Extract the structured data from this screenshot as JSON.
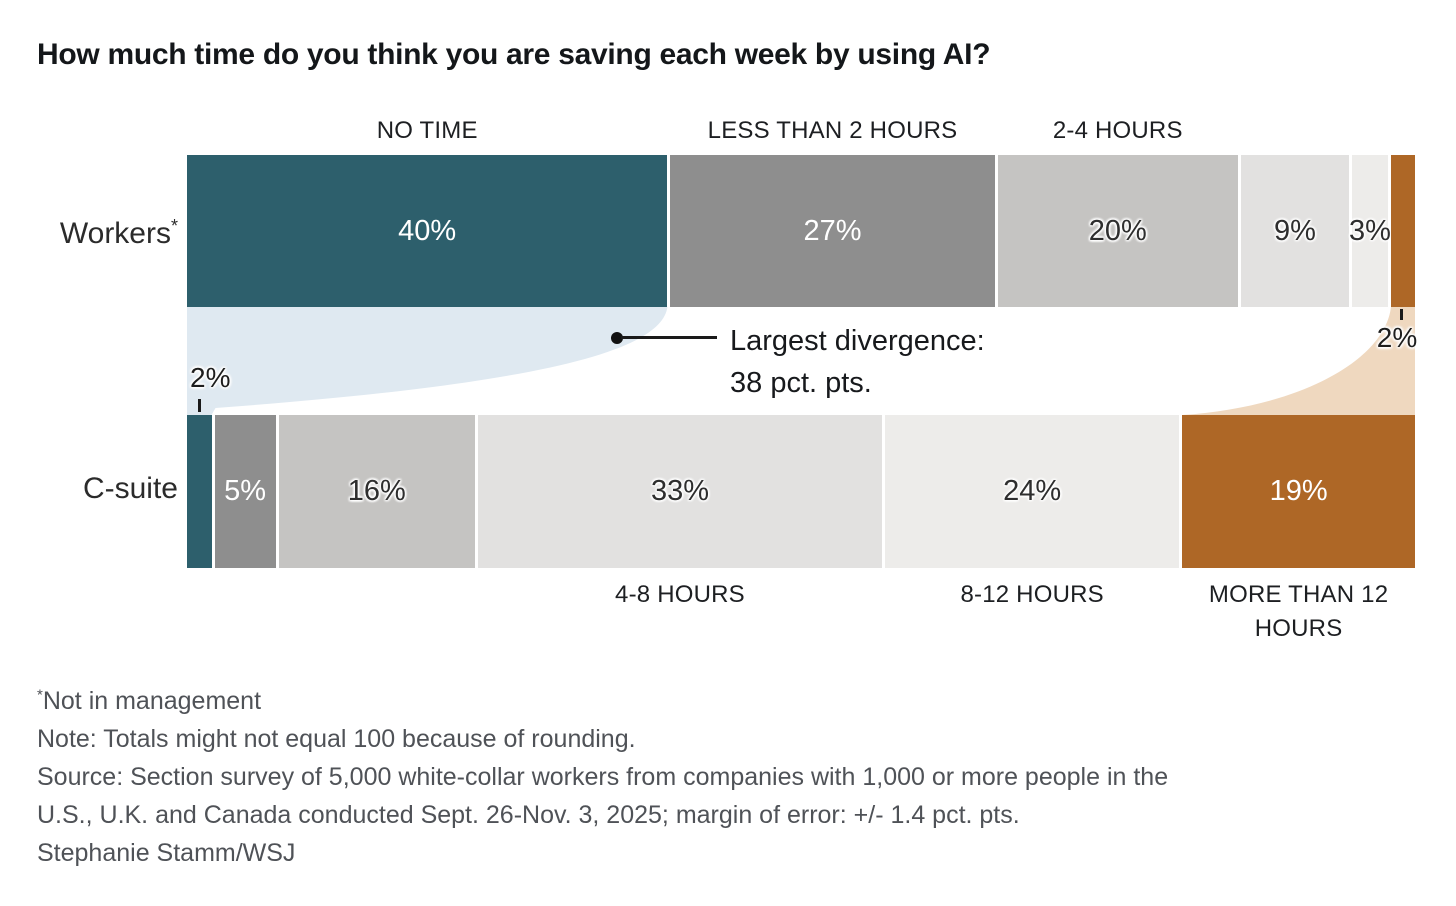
{
  "title": "How much time do you think you are saving each week by using AI?",
  "chart_data": {
    "type": "bar",
    "variant": "horizontal-stacked-comparison",
    "unit": "%",
    "categories": [
      "NO TIME",
      "LESS THAN 2 HOURS",
      "2-4 HOURS",
      "4-8 HOURS",
      "8-12 HOURS",
      "MORE THAN 12 HOURS"
    ],
    "series": [
      {
        "name": "Workers",
        "name_sup": "*",
        "values": [
          40,
          27,
          20,
          9,
          3,
          2
        ]
      },
      {
        "name": "C-suite",
        "name_sup": "",
        "values": [
          2,
          5,
          16,
          33,
          24,
          19
        ]
      }
    ],
    "segment_colors": [
      "#2d5f6c",
      "#8e8e8e",
      "#c5c4c2",
      "#e2e1e0",
      "#edecea",
      "#ae6726"
    ],
    "segment_label_styles": [
      "light",
      "light",
      "dark",
      "dark",
      "dark",
      "light"
    ],
    "flow_colors": {
      "no_time": "#dfe9f1",
      "more_than_12": "#efd8bf"
    },
    "outside_labels": {
      "workers_more_than_12": "2%",
      "csuite_no_time": "2%"
    },
    "annotation": {
      "line1": "Largest divergence:",
      "line2": "38 pct. pts."
    }
  },
  "footnotes": {
    "asterisk_sup": "*",
    "asterisk_text": "Not in management",
    "note": "Note: Totals might not equal 100 because of rounding.",
    "source_line1": "Source: Section survey of 5,000 white-collar workers from companies with 1,000 or more people in the",
    "source_line2": "U.S., U.K. and Canada conducted Sept. 26-Nov. 3, 2025; margin of error: +/- 1.4 pct. pts.",
    "credit": "Stephanie Stamm/WSJ"
  }
}
